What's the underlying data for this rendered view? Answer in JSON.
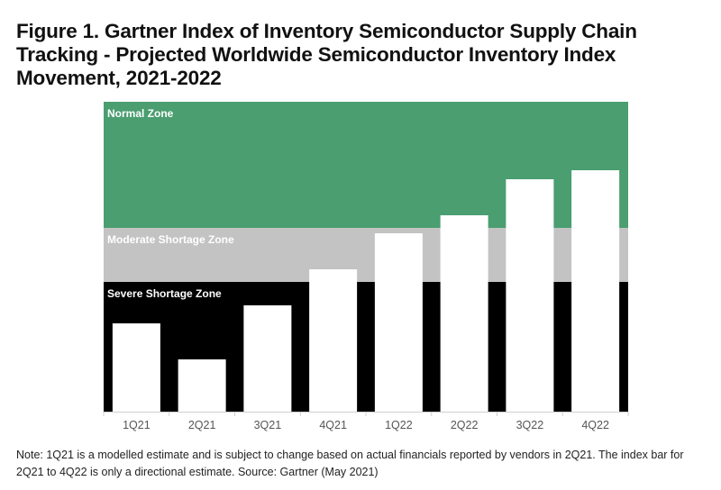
{
  "chart_data": {
    "type": "bar",
    "title": "Figure 1. Gartner Index of Inventory Semiconductor Supply Chain Tracking - Projected Worldwide Semiconductor Inventory Index Movement, 2021-2022",
    "categories": [
      "1Q21",
      "2Q21",
      "3Q21",
      "4Q21",
      "1Q22",
      "2Q22",
      "3Q22",
      "4Q22"
    ],
    "values": [
      49,
      29,
      59,
      79,
      99,
      109,
      129,
      134
    ],
    "ylim": [
      0,
      172
    ],
    "zones": [
      {
        "name": "Severe Shortage Zone",
        "from": 0,
        "to": 72,
        "color": "#000000"
      },
      {
        "name": "Moderate Shortage Zone",
        "from": 72,
        "to": 102,
        "color": "#c3c3c3"
      },
      {
        "name": "Normal Zone",
        "from": 102,
        "to": 172,
        "color": "#4a9e70"
      }
    ],
    "xlabel": "",
    "ylabel": "",
    "grid": false,
    "note": "Note: 1Q21 is a modelled estimate and is subject to change based on actual financials reported by vendors in 2Q21. The index bar for 2Q21 to 4Q22 is only a directional estimate. Source: Gartner (May 2021)"
  }
}
